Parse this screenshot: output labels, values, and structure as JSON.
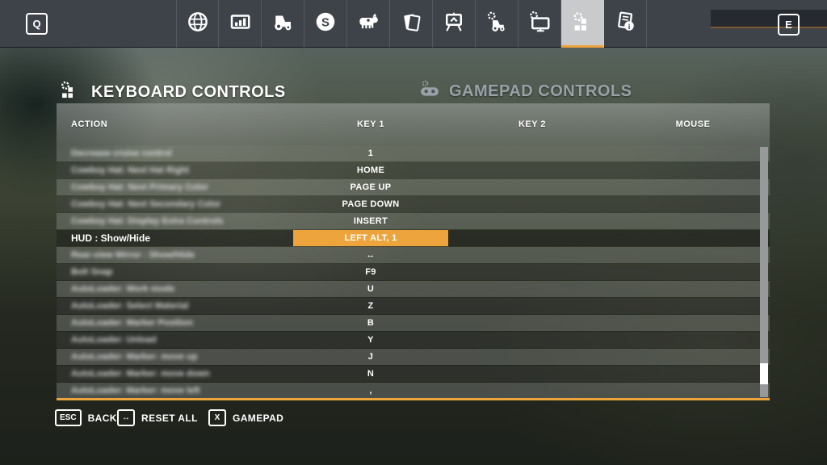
{
  "topbar": {
    "left_key_label": "Q",
    "right_key_label": "E",
    "active_tab_index": 9,
    "tabs": [
      {
        "icon": "map-globe-icon"
      },
      {
        "icon": "statistics-icon"
      },
      {
        "icon": "vehicles-icon"
      },
      {
        "icon": "finances-icon"
      },
      {
        "icon": "animals-icon"
      },
      {
        "icon": "contracts-icon"
      },
      {
        "icon": "production-icon"
      },
      {
        "icon": "vehicle-settings-icon"
      },
      {
        "icon": "game-settings-icon"
      },
      {
        "icon": "controls-icon"
      },
      {
        "icon": "help-icon"
      }
    ]
  },
  "header": {
    "keyboard_title": "KEYBOARD CONTROLS",
    "gamepad_title": "GAMEPAD CONTROLS"
  },
  "table": {
    "columns": [
      "ACTION",
      "KEY 1",
      "KEY 2",
      "MOUSE"
    ],
    "rows": [
      {
        "action": "Decrease cruise control",
        "key1": "1",
        "blurred": true,
        "selected": false
      },
      {
        "action": "Cowboy Hat: Next Hat Right",
        "key1": "HOME",
        "blurred": true,
        "selected": false
      },
      {
        "action": "Cowboy Hat: Next Primary Color",
        "key1": "PAGE UP",
        "blurred": true,
        "selected": false
      },
      {
        "action": "Cowboy Hat: Next Secondary Color",
        "key1": "PAGE DOWN",
        "blurred": true,
        "selected": false
      },
      {
        "action": "Cowboy Hat: Display Extra Controls",
        "key1": "INSERT",
        "blurred": true,
        "selected": false
      },
      {
        "action": "HUD : Show/Hide",
        "key1": "LEFT ALT, 1",
        "blurred": false,
        "selected": true
      },
      {
        "action": "Rear-view Mirror : Show/Hide",
        "key1": "↔",
        "blurred": true,
        "selected": false
      },
      {
        "action": "Bolt Snap",
        "key1": "F9",
        "blurred": true,
        "selected": false
      },
      {
        "action": "AutoLoader: Work mode",
        "key1": "U",
        "blurred": true,
        "selected": false
      },
      {
        "action": "AutoLoader: Select Material",
        "key1": "Z",
        "blurred": true,
        "selected": false
      },
      {
        "action": "AutoLoader: Marker Position",
        "key1": "B",
        "blurred": true,
        "selected": false
      },
      {
        "action": "AutoLoader: Unload",
        "key1": "Y",
        "blurred": true,
        "selected": false
      },
      {
        "action": "AutoLoader: Marker: move up",
        "key1": "J",
        "blurred": true,
        "selected": false
      },
      {
        "action": "AutoLoader: Marker: move down",
        "key1": "N",
        "blurred": true,
        "selected": false
      },
      {
        "action": "AutoLoader: Marker: move left",
        "key1": ",",
        "blurred": true,
        "selected": false
      }
    ]
  },
  "footer": {
    "buttons": [
      {
        "key": "ESC",
        "label": "BACK"
      },
      {
        "key": "↔",
        "label": "RESET ALL"
      },
      {
        "key": "X",
        "label": "GAMEPAD"
      }
    ]
  },
  "colors": {
    "accent_orange": "#eda43c",
    "topbar_bg": "#3e434a",
    "active_tab_bg": "#c9cacb"
  }
}
